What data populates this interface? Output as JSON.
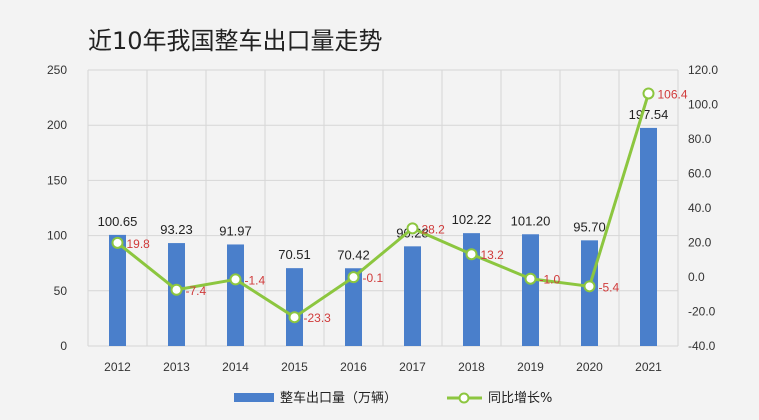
{
  "chart_data": {
    "type": "bar+line",
    "title": "近10年我国整车出口量走势",
    "categories": [
      "2012",
      "2013",
      "2014",
      "2015",
      "2016",
      "2017",
      "2018",
      "2019",
      "2020",
      "2021"
    ],
    "series": [
      {
        "name": "整车出口量（万辆）",
        "type": "bar",
        "axis": "left",
        "values": [
          100.65,
          93.23,
          91.97,
          70.51,
          70.42,
          90.28,
          102.22,
          101.2,
          95.7,
          197.54
        ],
        "labels": [
          "100.65",
          "93.23",
          "91.97",
          "70.51",
          "70.42",
          "90.28",
          "102.22",
          "101.20",
          "95.70",
          "197.54"
        ]
      },
      {
        "name": "同比增长%",
        "type": "line",
        "axis": "right",
        "values": [
          19.8,
          -7.4,
          -1.4,
          -23.3,
          -0.1,
          28.2,
          13.2,
          -1.0,
          -5.4,
          106.4
        ],
        "labels": [
          "19.8",
          "-7.4",
          "-1.4",
          "-23.3",
          "-0.1",
          "28.2",
          "13.2",
          "-1.0",
          "-5.4",
          "106.4"
        ]
      }
    ],
    "y_left": {
      "min": 0,
      "max": 250,
      "ticks": [
        "0",
        "50",
        "100",
        "150",
        "200",
        "250"
      ]
    },
    "y_right": {
      "min": -40,
      "max": 120,
      "ticks": [
        "-40.0",
        "-20.0",
        "0.0",
        "20.0",
        "40.0",
        "60.0",
        "80.0",
        "100.0",
        "120.0"
      ]
    },
    "grid": true,
    "legend_position": "bottom",
    "colors": {
      "bar": "#4a7fcb",
      "line": "#8cc63f",
      "yoy_label": "#d03b3b"
    }
  }
}
